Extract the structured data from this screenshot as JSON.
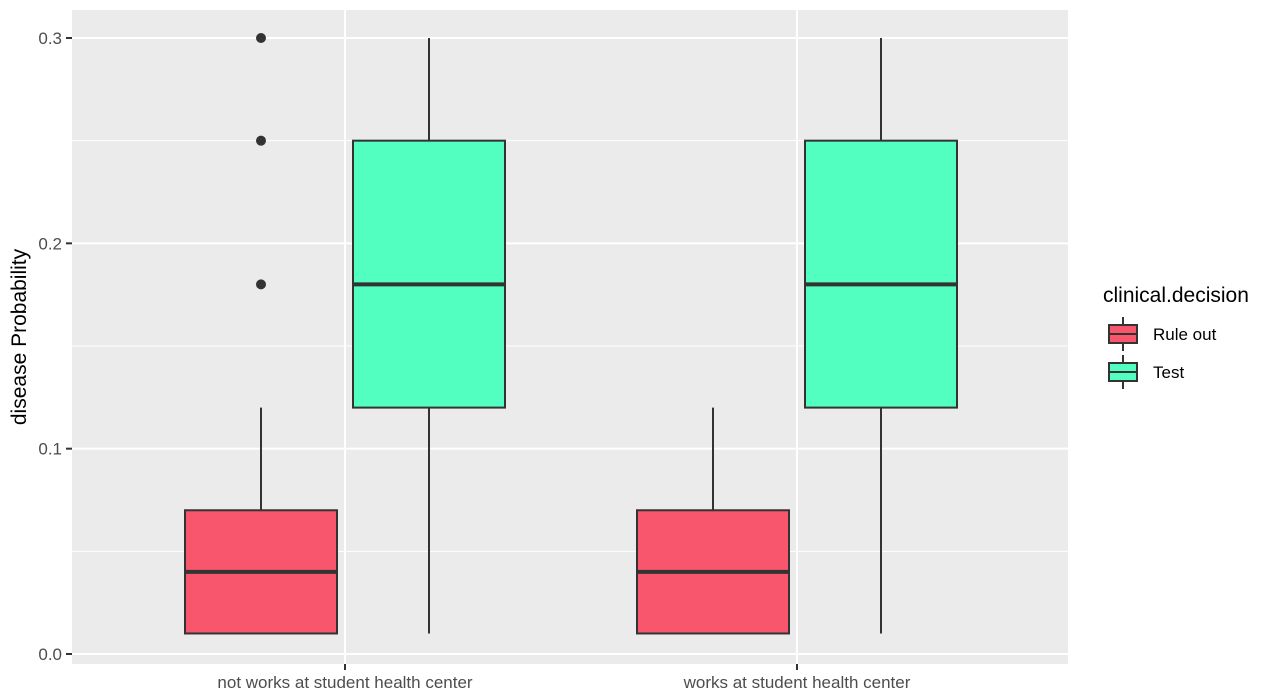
{
  "chart_data": {
    "type": "boxplot",
    "title": "",
    "xlabel": "",
    "ylabel": "disease Probability",
    "ylim": [
      0.0,
      0.3
    ],
    "grid": true,
    "y_ticks": [
      "0.0",
      "0.1",
      "0.2",
      "0.3"
    ],
    "categories": [
      "not works at student health center",
      "works at student health center"
    ],
    "legend": {
      "title": "clinical.decision",
      "placement": "right",
      "entries": [
        "Rule out",
        "Test"
      ]
    },
    "series": [
      {
        "name": "Rule out",
        "color": "#f8566d",
        "boxes": [
          {
            "min": 0.01,
            "q1": 0.01,
            "median": 0.04,
            "q3": 0.07,
            "max": 0.12,
            "outliers": [
              0.18,
              0.25,
              0.3
            ]
          },
          {
            "min": 0.01,
            "q1": 0.01,
            "median": 0.04,
            "q3": 0.07,
            "max": 0.12,
            "outliers": []
          }
        ]
      },
      {
        "name": "Test",
        "color": "#52ffc0",
        "boxes": [
          {
            "min": 0.01,
            "q1": 0.12,
            "median": 0.18,
            "q3": 0.25,
            "max": 0.3,
            "outliers": []
          },
          {
            "min": 0.01,
            "q1": 0.12,
            "median": 0.18,
            "q3": 0.25,
            "max": 0.3,
            "outliers": []
          }
        ]
      }
    ]
  },
  "colors": {
    "panel_background": "#ebebeb",
    "grid_major": "#ffffff",
    "box_outline": "#333333"
  }
}
